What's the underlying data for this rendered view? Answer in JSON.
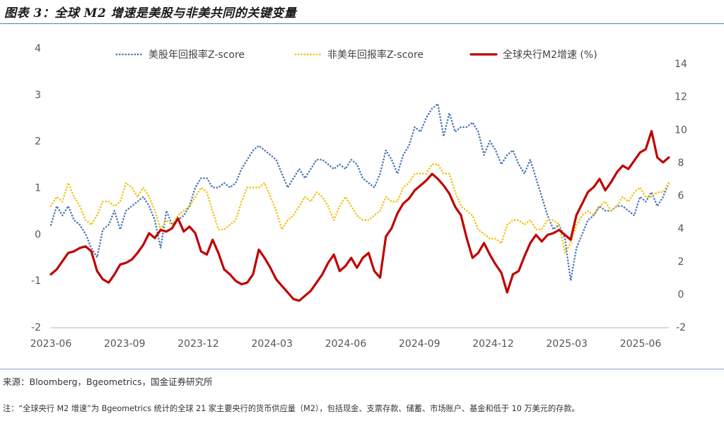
{
  "title": "图表 3：全球 M2 增速是美股与非美共同的关键变量",
  "source": "来源：Bloomberg，Bgeometrics，国金证券研究所",
  "note": "注：“全球央行 M2 增速”为 Bgeometrics 统计的全球 21 家主要央行的货币供应量（M2），包括现金、支票存款、储蓄、市场账户、基金和低于 10 万美元的存款。",
  "chart_data": {
    "type": "line",
    "legend_position": "top",
    "grid": false,
    "x_tick_labels": [
      "2023-06",
      "2023-09",
      "2023-12",
      "2024-03",
      "2024-06",
      "2024-09",
      "2024-12",
      "2025-03",
      "2025-06"
    ],
    "left_axis": {
      "ylim": [
        -2,
        4
      ],
      "ticks": [
        "-2",
        "-1",
        "0",
        "1",
        "2",
        "3",
        "4"
      ]
    },
    "right_axis": {
      "ylim": [
        -2,
        14
      ],
      "ticks": [
        "-2",
        "0",
        "2",
        "4",
        "6",
        "8",
        "10",
        "12",
        "14"
      ]
    },
    "series": [
      {
        "name": "美股年回报率Z-score",
        "axis": "left",
        "color": "#4e7ab8",
        "style": "dotted",
        "values": [
          0.2,
          0.6,
          0.4,
          0.6,
          0.3,
          0.2,
          0.0,
          -0.3,
          -0.5,
          0.1,
          0.2,
          0.5,
          0.1,
          0.5,
          0.6,
          0.7,
          0.8,
          0.6,
          0.3,
          -0.3,
          0.5,
          0.2,
          0.3,
          0.4,
          0.6,
          1.0,
          1.2,
          1.2,
          1.0,
          1.0,
          1.1,
          1.0,
          1.1,
          1.4,
          1.6,
          1.8,
          1.9,
          1.8,
          1.7,
          1.6,
          1.3,
          1.0,
          1.2,
          1.4,
          1.2,
          1.4,
          1.6,
          1.6,
          1.5,
          1.4,
          1.5,
          1.4,
          1.6,
          1.5,
          1.2,
          1.1,
          1.0,
          1.3,
          1.8,
          1.6,
          1.3,
          1.7,
          1.9,
          2.3,
          2.2,
          2.5,
          2.7,
          2.8,
          2.1,
          2.6,
          2.2,
          2.3,
          2.3,
          2.4,
          2.2,
          1.7,
          2.0,
          1.8,
          1.5,
          1.7,
          1.8,
          1.5,
          1.3,
          1.6,
          1.2,
          0.8,
          0.4,
          0.1,
          0.2,
          -0.1,
          -1.0,
          -0.3,
          0.0,
          0.3,
          0.4,
          0.6,
          0.5,
          0.5,
          0.6,
          0.6,
          0.5,
          0.4,
          0.8,
          0.7,
          0.9,
          0.6,
          0.8,
          1.1
        ]
      },
      {
        "name": "非美年回报率Z-score",
        "axis": "left",
        "color": "#f2c318",
        "style": "dotted",
        "values": [
          0.6,
          0.8,
          0.7,
          1.1,
          0.8,
          0.6,
          0.3,
          0.2,
          0.4,
          0.7,
          0.7,
          0.6,
          0.7,
          1.1,
          1.0,
          0.8,
          1.0,
          0.8,
          0.5,
          0.1,
          0.3,
          0.2,
          0.4,
          0.5,
          0.6,
          0.8,
          1.0,
          0.9,
          0.5,
          0.1,
          0.1,
          0.2,
          0.3,
          0.7,
          1.0,
          1.0,
          1.0,
          1.1,
          0.8,
          0.5,
          0.1,
          0.3,
          0.4,
          0.6,
          0.8,
          0.7,
          0.9,
          0.8,
          0.6,
          0.3,
          0.6,
          0.8,
          0.6,
          0.4,
          0.3,
          0.3,
          0.4,
          0.5,
          0.8,
          0.7,
          0.7,
          1.0,
          1.1,
          1.3,
          1.3,
          1.3,
          1.5,
          1.5,
          1.3,
          1.3,
          0.9,
          0.6,
          0.5,
          0.4,
          0.1,
          0.0,
          -0.1,
          -0.1,
          -0.2,
          0.2,
          0.3,
          0.3,
          0.2,
          0.3,
          0.1,
          0.1,
          0.3,
          0.3,
          0.2,
          -0.4,
          -0.2,
          0.2,
          0.4,
          0.5,
          0.4,
          0.6,
          0.7,
          0.5,
          0.6,
          0.8,
          0.7,
          0.9,
          1.0,
          0.8,
          0.8,
          0.9,
          0.9,
          1.1
        ]
      },
      {
        "name": "全球央行M2增速 (%)",
        "axis": "right",
        "color": "#c00000",
        "style": "solid",
        "values": [
          1.2,
          1.5,
          2.0,
          2.5,
          2.6,
          2.8,
          2.9,
          2.6,
          1.4,
          0.9,
          0.7,
          1.2,
          1.8,
          1.9,
          2.1,
          2.5,
          3.0,
          3.7,
          3.4,
          3.9,
          3.8,
          4.0,
          4.6,
          3.8,
          4.1,
          3.7,
          2.6,
          2.4,
          3.3,
          2.5,
          1.5,
          1.2,
          0.8,
          0.6,
          0.7,
          1.2,
          2.7,
          2.2,
          1.6,
          0.9,
          0.5,
          0.1,
          -0.3,
          -0.4,
          -0.1,
          0.2,
          0.7,
          1.2,
          1.9,
          2.4,
          1.4,
          1.7,
          2.2,
          1.6,
          2.2,
          2.5,
          1.4,
          1.0,
          3.5,
          4.0,
          4.9,
          5.5,
          5.8,
          6.3,
          6.6,
          6.9,
          7.3,
          7.0,
          6.6,
          6.1,
          5.3,
          4.8,
          3.4,
          2.2,
          2.5,
          3.1,
          2.4,
          1.8,
          1.3,
          0.1,
          1.2,
          1.4,
          2.3,
          3.1,
          3.6,
          3.2,
          3.6,
          3.7,
          3.9,
          3.6,
          3.3,
          4.8,
          5.5,
          6.2,
          6.5,
          7.0,
          6.3,
          6.8,
          7.4,
          7.8,
          7.6,
          8.1,
          8.6,
          8.8,
          9.9,
          8.3,
          8.0,
          8.3
        ]
      }
    ]
  }
}
